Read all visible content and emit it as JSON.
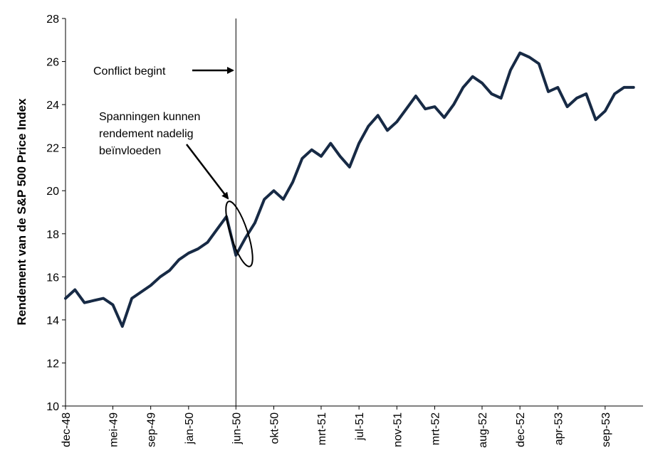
{
  "chart_data": {
    "type": "line",
    "title": "",
    "xlabel": "",
    "ylabel": "Rendement van de S&P 500 Price Index",
    "ylim": [
      10,
      28
    ],
    "yticks": [
      10,
      12,
      14,
      16,
      18,
      20,
      22,
      24,
      26,
      28
    ],
    "xticks": [
      "dec-48",
      "mei-49",
      "sep-49",
      "jan-50",
      "jun-50",
      "okt-50",
      "mrt-51",
      "jul-51",
      "nov-51",
      "mrt-52",
      "aug-52",
      "dec-52",
      "apr-53",
      "sep-53"
    ],
    "grid": false,
    "legend": "none",
    "line_color": "#172a45",
    "series": [
      {
        "x": [
          "1948-12",
          "1949-01",
          "1949-02",
          "1949-03",
          "1949-04",
          "1949-05",
          "1949-06",
          "1949-07",
          "1949-08",
          "1949-09",
          "1949-10",
          "1949-11",
          "1949-12",
          "1950-01",
          "1950-02",
          "1950-03",
          "1950-04",
          "1950-05",
          "1950-06",
          "1950-07",
          "1950-08",
          "1950-09",
          "1950-10",
          "1950-11",
          "1950-12",
          "1951-01",
          "1951-02",
          "1951-03",
          "1951-04",
          "1951-05",
          "1951-06",
          "1951-07",
          "1951-08",
          "1951-09",
          "1951-10",
          "1951-11",
          "1951-12",
          "1952-01",
          "1952-02",
          "1952-03",
          "1952-04",
          "1952-05",
          "1952-06",
          "1952-07",
          "1952-08",
          "1952-09",
          "1952-10",
          "1952-11",
          "1952-12",
          "1953-01",
          "1953-02",
          "1953-03",
          "1953-04",
          "1953-05",
          "1953-06",
          "1953-07",
          "1953-08",
          "1953-09",
          "1953-10",
          "1953-11",
          "1953-12"
        ],
        "values": [
          15.0,
          15.4,
          14.8,
          14.9,
          15.0,
          14.7,
          13.7,
          15.0,
          15.3,
          15.6,
          16.0,
          16.3,
          16.8,
          17.1,
          17.3,
          17.6,
          18.2,
          18.8,
          17.0,
          17.8,
          18.5,
          19.6,
          20.0,
          19.6,
          20.4,
          21.5,
          21.9,
          21.6,
          22.2,
          21.6,
          21.1,
          22.2,
          23.0,
          23.5,
          22.8,
          23.2,
          23.8,
          24.4,
          23.8,
          23.9,
          23.4,
          24.0,
          24.8,
          25.3,
          25.0,
          24.5,
          24.3,
          25.6,
          26.4,
          26.2,
          25.9,
          24.6,
          24.8,
          23.9,
          24.3,
          24.5,
          23.3,
          23.7,
          24.5,
          24.8,
          24.8
        ]
      }
    ],
    "annotations": [
      {
        "type": "vline",
        "x": "1950-06",
        "label": "Conflict begint"
      },
      {
        "type": "ellipse",
        "x": "1950-06",
        "y": [
          16.6,
          19.6
        ],
        "label": "Spanningen kunnen rendement nadelig beïnvloeden"
      }
    ]
  },
  "annotations_text": {
    "conflict": "Conflict begint",
    "tension_line1": "Spanningen  kunnen",
    "tension_line2": "rendement nadelig",
    "tension_line3": "beïnvloeden"
  }
}
